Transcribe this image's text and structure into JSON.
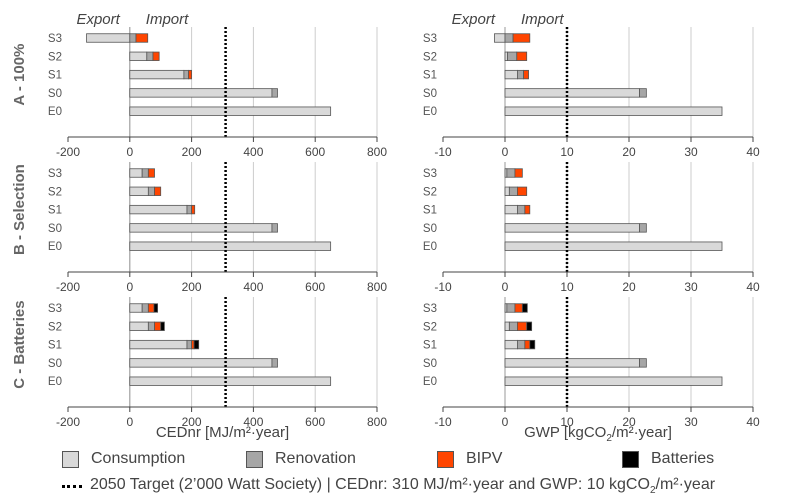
{
  "colors": {
    "consumption": "#d9d9d9",
    "renovation": "#a6a6a6",
    "bipv": "#ff4500",
    "batteries": "#000000",
    "edge": "#555555",
    "grid": "#cccccc"
  },
  "annotations": {
    "export": "Export",
    "import": "Import"
  },
  "axes": {
    "cednr": {
      "label": "CEDnr [MJ/m²·year]",
      "ticks": [
        "-200",
        "0",
        "200",
        "400",
        "600",
        "800"
      ]
    },
    "gwp": {
      "label_prefix": "GWP [kgCO",
      "label_sub": "2",
      "label_suffix": "/m²·year]",
      "ticks": [
        "-10",
        "0",
        "10",
        "20",
        "30",
        "40"
      ]
    }
  },
  "rows": [
    {
      "label": "A - 100%"
    },
    {
      "label": "B - Selection"
    },
    {
      "label": "C - Batteries"
    }
  ],
  "legend": {
    "items": [
      {
        "label": "Consumption",
        "color": "#d9d9d9"
      },
      {
        "label": "Renovation",
        "color": "#a6a6a6"
      },
      {
        "label": "BIPV",
        "color": "#ff4500"
      },
      {
        "label": "Batteries",
        "color": "#000000"
      }
    ],
    "target_prefix": "2050 Target (2’000 Watt Society) | CEDnr: 310 MJ/m²·year and GWP: 10 kgCO",
    "target_sub": "2",
    "target_suffix": "/m²·year"
  },
  "chart_data": [
    {
      "type": "bar",
      "orientation": "horizontal",
      "stacked": true,
      "panel": "A - 100%",
      "metric": "CEDnr",
      "categories": [
        "S3",
        "S2",
        "S1",
        "S0",
        "E0"
      ],
      "xlim": [
        -200,
        800
      ],
      "xticks": [
        -200,
        0,
        200,
        400,
        600,
        800
      ],
      "xlabel": "CEDnr [MJ/m²·year]",
      "target": 310,
      "series": [
        {
          "name": "Consumption",
          "values": [
            -140,
            55,
            175,
            460,
            650
          ]
        },
        {
          "name": "Renovation",
          "values": [
            20,
            20,
            15,
            18,
            0
          ]
        },
        {
          "name": "BIPV",
          "values": [
            38,
            20,
            10,
            0,
            0
          ]
        },
        {
          "name": "Batteries",
          "values": [
            0,
            0,
            0,
            0,
            0
          ]
        }
      ]
    },
    {
      "type": "bar",
      "orientation": "horizontal",
      "stacked": true,
      "panel": "A - 100%",
      "metric": "GWP",
      "categories": [
        "S3",
        "S2",
        "S1",
        "S0",
        "E0"
      ],
      "xlim": [
        -10,
        40
      ],
      "xticks": [
        -10,
        0,
        10,
        20,
        30,
        40
      ],
      "xlabel": "GWP [kgCO2/m²·year]",
      "target": 10,
      "series": [
        {
          "name": "Consumption",
          "values": [
            -1.7,
            0.4,
            2,
            21.7,
            35
          ]
        },
        {
          "name": "Renovation",
          "values": [
            1.3,
            1.5,
            1,
            1.1,
            0
          ]
        },
        {
          "name": "BIPV",
          "values": [
            2.7,
            1.6,
            0.8,
            0,
            0
          ]
        },
        {
          "name": "Batteries",
          "values": [
            0,
            0,
            0,
            0,
            0
          ]
        }
      ]
    },
    {
      "type": "bar",
      "orientation": "horizontal",
      "stacked": true,
      "panel": "B - Selection",
      "metric": "CEDnr",
      "categories": [
        "S3",
        "S2",
        "S1",
        "S0",
        "E0"
      ],
      "xlim": [
        -200,
        800
      ],
      "xticks": [
        -200,
        0,
        200,
        400,
        600,
        800
      ],
      "xlabel": "CEDnr [MJ/m²·year]",
      "target": 310,
      "series": [
        {
          "name": "Consumption",
          "values": [
            40,
            60,
            185,
            460,
            650
          ]
        },
        {
          "name": "Renovation",
          "values": [
            20,
            20,
            15,
            18,
            0
          ]
        },
        {
          "name": "BIPV",
          "values": [
            20,
            20,
            10,
            0,
            0
          ]
        },
        {
          "name": "Batteries",
          "values": [
            0,
            0,
            0,
            0,
            0
          ]
        }
      ]
    },
    {
      "type": "bar",
      "orientation": "horizontal",
      "stacked": true,
      "panel": "B - Selection",
      "metric": "GWP",
      "categories": [
        "S3",
        "S2",
        "S1",
        "S0",
        "E0"
      ],
      "xlim": [
        -10,
        40
      ],
      "xticks": [
        -10,
        0,
        10,
        20,
        30,
        40
      ],
      "xlabel": "GWP [kgCO2/m²·year]",
      "target": 10,
      "series": [
        {
          "name": "Consumption",
          "values": [
            0.3,
            0.7,
            2,
            21.7,
            35
          ]
        },
        {
          "name": "Renovation",
          "values": [
            1.3,
            1.3,
            1.2,
            1.1,
            0
          ]
        },
        {
          "name": "BIPV",
          "values": [
            1.2,
            1.5,
            0.8,
            0,
            0
          ]
        },
        {
          "name": "Batteries",
          "values": [
            0,
            0,
            0,
            0,
            0
          ]
        }
      ]
    },
    {
      "type": "bar",
      "orientation": "horizontal",
      "stacked": true,
      "panel": "C - Batteries",
      "metric": "CEDnr",
      "categories": [
        "S3",
        "S2",
        "S1",
        "S0",
        "E0"
      ],
      "xlim": [
        -200,
        800
      ],
      "xticks": [
        -200,
        0,
        200,
        400,
        600,
        800
      ],
      "xlabel": "CEDnr [MJ/m²·year]",
      "target": 310,
      "series": [
        {
          "name": "Consumption",
          "values": [
            40,
            60,
            185,
            460,
            650
          ]
        },
        {
          "name": "Renovation",
          "values": [
            20,
            20,
            15,
            18,
            0
          ]
        },
        {
          "name": "BIPV",
          "values": [
            18,
            20,
            8,
            0,
            0
          ]
        },
        {
          "name": "Batteries",
          "values": [
            12,
            12,
            15,
            0,
            0
          ]
        }
      ]
    },
    {
      "type": "bar",
      "orientation": "horizontal",
      "stacked": true,
      "panel": "C - Batteries",
      "metric": "GWP",
      "categories": [
        "S3",
        "S2",
        "S1",
        "S0",
        "E0"
      ],
      "xlim": [
        -10,
        40
      ],
      "xticks": [
        -10,
        0,
        10,
        20,
        30,
        40
      ],
      "xlabel": "GWP [kgCO2/m²·year]",
      "target": 10,
      "series": [
        {
          "name": "Consumption",
          "values": [
            0.3,
            0.7,
            2,
            21.7,
            35
          ]
        },
        {
          "name": "Renovation",
          "values": [
            1.3,
            1.3,
            1.2,
            1.1,
            0
          ]
        },
        {
          "name": "BIPV",
          "values": [
            1.2,
            1.5,
            0.8,
            0,
            0
          ]
        },
        {
          "name": "Batteries",
          "values": [
            0.8,
            0.8,
            0.8,
            0,
            0
          ]
        }
      ]
    }
  ]
}
